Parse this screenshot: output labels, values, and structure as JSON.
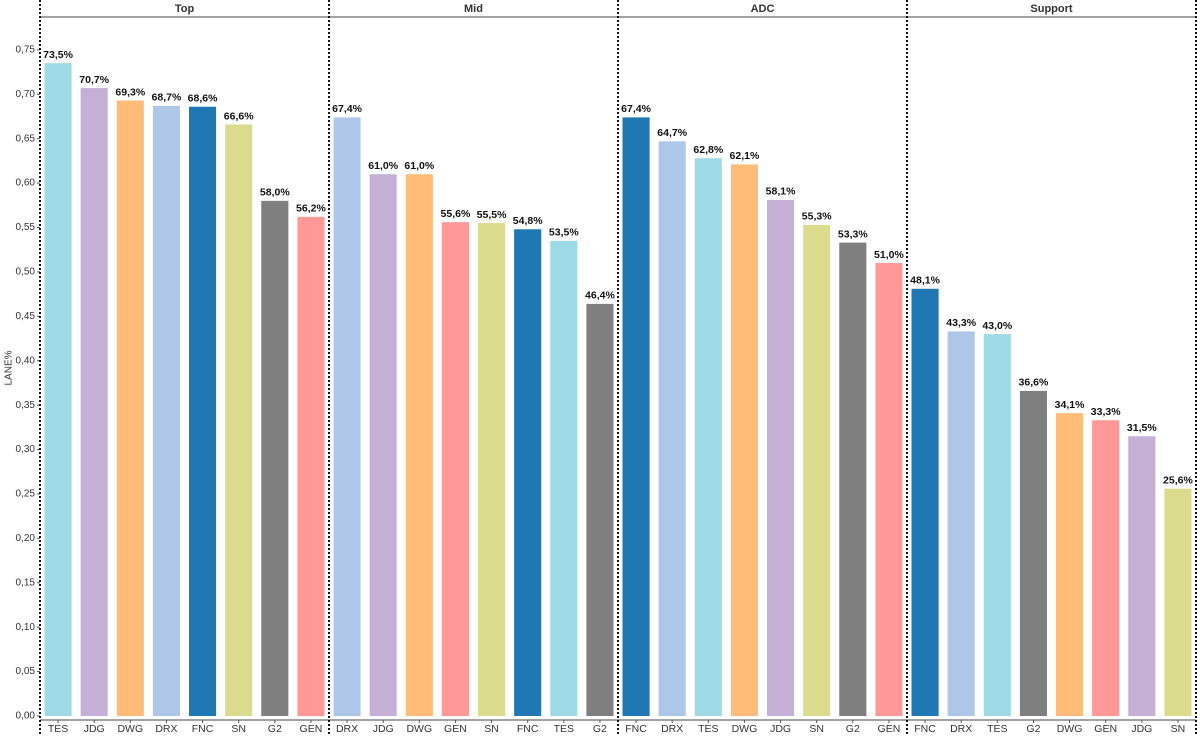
{
  "chart_data": {
    "type": "bar",
    "y_label": "LANE%",
    "ylim": [
      0,
      0.787
    ],
    "yticks": [
      {
        "value": 0,
        "label": "0,00"
      },
      {
        "value": 0.05,
        "label": "0,05"
      },
      {
        "value": 0.1,
        "label": "0,10"
      },
      {
        "value": 0.15,
        "label": "0,15"
      },
      {
        "value": 0.2,
        "label": "0,20"
      },
      {
        "value": 0.25,
        "label": "0,25"
      },
      {
        "value": 0.3,
        "label": "0,30"
      },
      {
        "value": 0.35,
        "label": "0,35"
      },
      {
        "value": 0.4,
        "label": "0,40"
      },
      {
        "value": 0.45,
        "label": "0,45"
      },
      {
        "value": 0.5,
        "label": "0,50"
      },
      {
        "value": 0.55,
        "label": "0,55"
      },
      {
        "value": 0.6,
        "label": "0,60"
      },
      {
        "value": 0.65,
        "label": "0,65"
      },
      {
        "value": 0.7,
        "label": "0,70"
      },
      {
        "value": 0.75,
        "label": "0,75"
      }
    ],
    "panels": [
      {
        "title": "Top",
        "categories": [
          "TES",
          "JDG",
          "DWG",
          "DRX",
          "FNC",
          "SN",
          "G2",
          "GEN"
        ],
        "values": [
          0.735,
          0.707,
          0.693,
          0.687,
          0.686,
          0.666,
          0.58,
          0.562
        ],
        "value_labels": [
          "73,5%",
          "70,7%",
          "69,3%",
          "68,7%",
          "68,6%",
          "66,6%",
          "58,0%",
          "56,2%"
        ],
        "colors": [
          "#9edae5",
          "#c5b0d5",
          "#ffbb78",
          "#aec7e8",
          "#1f77b4",
          "#dbdb8d",
          "#7f7f7f",
          "#ff9896"
        ]
      },
      {
        "title": "Mid",
        "categories": [
          "DRX",
          "JDG",
          "DWG",
          "GEN",
          "SN",
          "FNC",
          "TES",
          "G2"
        ],
        "values": [
          0.674,
          0.61,
          0.61,
          0.556,
          0.555,
          0.548,
          0.535,
          0.464
        ],
        "value_labels": [
          "67,4%",
          "61,0%",
          "61,0%",
          "55,6%",
          "55,5%",
          "54,8%",
          "53,5%",
          "46,4%"
        ],
        "colors": [
          "#aec7e8",
          "#c5b0d5",
          "#ffbb78",
          "#ff9896",
          "#dbdb8d",
          "#1f77b4",
          "#9edae5",
          "#7f7f7f"
        ]
      },
      {
        "title": "ADC",
        "categories": [
          "FNC",
          "DRX",
          "TES",
          "DWG",
          "JDG",
          "SN",
          "G2",
          "GEN"
        ],
        "values": [
          0.674,
          0.647,
          0.628,
          0.621,
          0.581,
          0.553,
          0.533,
          0.51
        ],
        "value_labels": [
          "67,4%",
          "64,7%",
          "62,8%",
          "62,1%",
          "58,1%",
          "55,3%",
          "53,3%",
          "51,0%"
        ],
        "colors": [
          "#1f77b4",
          "#aec7e8",
          "#9edae5",
          "#ffbb78",
          "#c5b0d5",
          "#dbdb8d",
          "#7f7f7f",
          "#ff9896"
        ]
      },
      {
        "title": "Support",
        "categories": [
          "FNC",
          "DRX",
          "TES",
          "G2",
          "DWG",
          "GEN",
          "JDG",
          "SN"
        ],
        "values": [
          0.481,
          0.433,
          0.43,
          0.366,
          0.341,
          0.333,
          0.315,
          0.256
        ],
        "value_labels": [
          "48,1%",
          "43,3%",
          "43,0%",
          "36,6%",
          "34,1%",
          "33,3%",
          "31,5%",
          "25,6%"
        ],
        "colors": [
          "#1f77b4",
          "#aec7e8",
          "#9edae5",
          "#7f7f7f",
          "#ffbb78",
          "#ff9896",
          "#c5b0d5",
          "#dbdb8d"
        ]
      }
    ]
  }
}
